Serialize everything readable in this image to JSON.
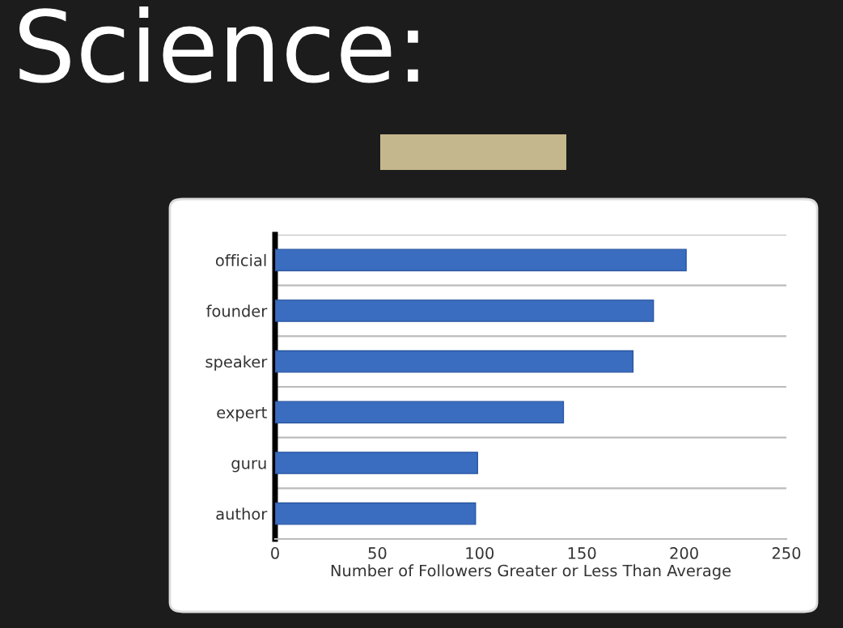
{
  "chart_data": {
    "type": "bar",
    "orientation": "horizontal",
    "title": "Science:",
    "categories": [
      "official",
      "founder",
      "speaker",
      "expert",
      "guru",
      "author"
    ],
    "values": [
      201,
      185,
      175,
      141,
      99,
      98
    ],
    "color": "#3a6cc0",
    "xlim": [
      0,
      250
    ],
    "xticks": [
      0,
      50,
      100,
      150,
      200,
      250
    ],
    "xlabel": "Number of Followers Greater or Less Than Average",
    "grid": "y"
  }
}
